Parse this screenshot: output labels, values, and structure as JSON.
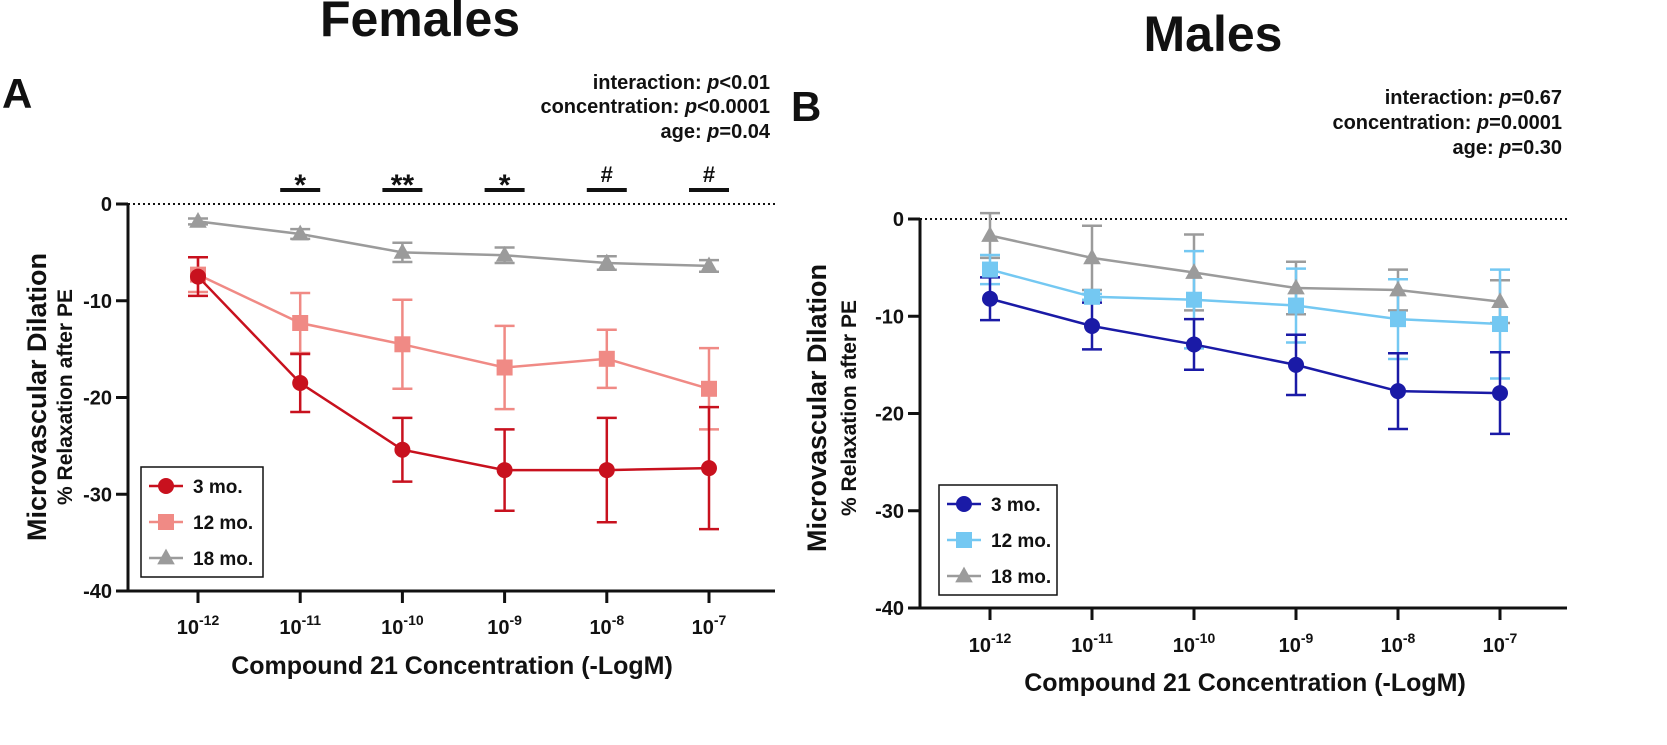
{
  "chart_data": [
    {
      "type": "line",
      "panel_title": "Females",
      "panel_label": "A",
      "stats": [
        {
          "label": "interaction: ",
          "p_symbol": "p",
          "value": "<0.01"
        },
        {
          "label": "concentration: ",
          "p_symbol": "p",
          "value": "<0.0001"
        },
        {
          "label": "age: ",
          "p_symbol": "p",
          "value": "=0.04"
        }
      ],
      "xlabel": "Compound 21 Concentration (-LogM)",
      "ylabel": "Microvascular Dilation",
      "ylabel_sub": "% Relaxation after PE",
      "categories": [
        {
          "base": "10",
          "exp": "-12"
        },
        {
          "base": "10",
          "exp": "-11"
        },
        {
          "base": "10",
          "exp": "-10"
        },
        {
          "base": "10",
          "exp": "-9"
        },
        {
          "base": "10",
          "exp": "-8"
        },
        {
          "base": "10",
          "exp": "-7"
        }
      ],
      "ylim": [
        -40,
        0
      ],
      "yticks": [
        0,
        -10,
        -20,
        -30,
        -40
      ],
      "series": [
        {
          "name": "3 mo.",
          "marker": "circle",
          "color": "#c8111e",
          "values": [
            -7.5,
            -18.5,
            -25.4,
            -27.5,
            -27.5,
            -27.3
          ],
          "errors": [
            2.0,
            3.0,
            3.3,
            4.2,
            5.4,
            6.3
          ]
        },
        {
          "name": "12 mo.",
          "marker": "square",
          "color": "#f08a85",
          "values": [
            -7.3,
            -12.3,
            -14.5,
            -16.9,
            -16.0,
            -19.1
          ],
          "errors": [
            1.8,
            3.1,
            4.6,
            4.3,
            3.0,
            4.2
          ]
        },
        {
          "name": "18 mo.",
          "marker": "triangle",
          "color": "#9b9b9b",
          "values": [
            -1.8,
            -3.1,
            -5.0,
            -5.3,
            -6.1,
            -6.4
          ],
          "errors": [
            0.3,
            0.5,
            1.0,
            0.8,
            0.7,
            0.6
          ]
        }
      ],
      "significance": [
        {
          "index": 1,
          "mark": "*"
        },
        {
          "index": 2,
          "mark": "**"
        },
        {
          "index": 3,
          "mark": "*"
        },
        {
          "index": 4,
          "mark": "#"
        },
        {
          "index": 5,
          "mark": "#"
        }
      ],
      "legend_position": "bottom-left"
    },
    {
      "type": "line",
      "panel_title": "Males",
      "panel_label": "B",
      "stats": [
        {
          "label": "interaction: ",
          "p_symbol": "p",
          "value": "=0.67"
        },
        {
          "label": "concentration: ",
          "p_symbol": "p",
          "value": "=0.0001"
        },
        {
          "label": "age: ",
          "p_symbol": "p",
          "value": "=0.30"
        }
      ],
      "xlabel": "Compound 21 Concentration (-LogM)",
      "ylabel": "Microvascular Dilation",
      "ylabel_sub": "% Relaxation after PE",
      "categories": [
        {
          "base": "10",
          "exp": "-12"
        },
        {
          "base": "10",
          "exp": "-11"
        },
        {
          "base": "10",
          "exp": "-10"
        },
        {
          "base": "10",
          "exp": "-9"
        },
        {
          "base": "10",
          "exp": "-8"
        },
        {
          "base": "10",
          "exp": "-7"
        }
      ],
      "ylim": [
        -40,
        0
      ],
      "yticks": [
        0,
        -10,
        -20,
        -30,
        -40
      ],
      "series": [
        {
          "name": "3 mo.",
          "marker": "circle",
          "color": "#1a1aa6",
          "values": [
            -8.2,
            -11.0,
            -12.9,
            -15.0,
            -17.7,
            -17.9
          ],
          "errors": [
            2.2,
            2.4,
            2.6,
            3.1,
            3.9,
            4.2
          ]
        },
        {
          "name": "12 mo.",
          "marker": "square",
          "color": "#74c8f2",
          "values": [
            -5.2,
            -8.0,
            -8.3,
            -8.9,
            -10.3,
            -10.8
          ],
          "errors": [
            1.5,
            0.3,
            5.0,
            3.8,
            4.1,
            5.6
          ]
        },
        {
          "name": "18 mo.",
          "marker": "triangle",
          "color": "#9b9b9b",
          "values": [
            -1.7,
            -4.0,
            -5.5,
            -7.1,
            -7.3,
            -8.5
          ],
          "errors": [
            2.3,
            3.3,
            3.9,
            2.7,
            2.1,
            2.2
          ]
        }
      ],
      "significance": [],
      "legend_position": "bottom-left"
    }
  ]
}
